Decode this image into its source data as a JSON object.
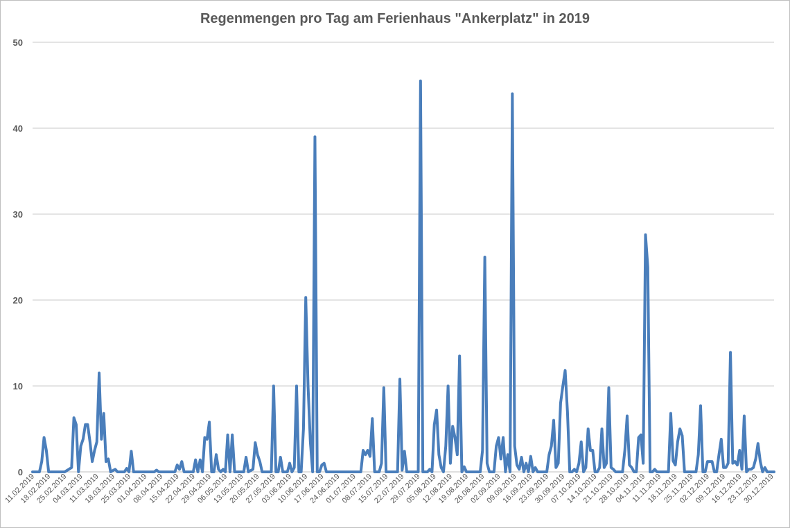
{
  "chart_data": {
    "type": "line",
    "title": "Regenmengen pro Tag am Ferienhaus \"Ankerplatz\" in 2019",
    "xlabel": "",
    "ylabel": "",
    "ylim": [
      0,
      50
    ],
    "yticks": [
      0,
      10,
      20,
      30,
      40,
      50
    ],
    "grid": true,
    "line_color": "#4a7ebb",
    "x_tick_labels": [
      "11.02.2019",
      "18.02.2019",
      "25.02.2019",
      "04.03.2019",
      "11.03.2019",
      "18.03.2019",
      "25.03.2019",
      "01.04.2019",
      "08.04.2019",
      "15.04.2019",
      "22.04.2019",
      "29.04.2019",
      "06.05.2019",
      "13.05.2019",
      "20.05.2019",
      "27.05.2019",
      "03.06.2019",
      "10.06.2019",
      "17.06.2019",
      "24.06.2019",
      "01.07.2019",
      "08.07.2019",
      "15.07.2019",
      "22.07.2019",
      "29.07.2019",
      "05.08.2019",
      "12.08.2019",
      "19.08.2019",
      "26.08.2019",
      "02.09.2019",
      "09.09.2019",
      "16.09.2019",
      "23.09.2019",
      "30.09.2019",
      "07.10.2019",
      "14.10.2019",
      "21.10.2019",
      "28.10.2019",
      "04.11.2019",
      "11.11.2019",
      "18.11.2019",
      "25.11.2019",
      "02.12.2019",
      "09.12.2019",
      "16.12.2019",
      "23.12.2019",
      "30.12.2019"
    ],
    "x_start": "2019-02-11",
    "x_end": "2019-12-31",
    "series": [
      {
        "points": [
          [
            "2019-02-11",
            0
          ],
          [
            "2019-02-14",
            0
          ],
          [
            "2019-02-15",
            1.2
          ],
          [
            "2019-02-16",
            4
          ],
          [
            "2019-02-17",
            2.5
          ],
          [
            "2019-02-18",
            0
          ],
          [
            "2019-02-25",
            0
          ],
          [
            "2019-02-28",
            0.5
          ],
          [
            "2019-03-01",
            6.3
          ],
          [
            "2019-03-02",
            5.5
          ],
          [
            "2019-03-03",
            0
          ],
          [
            "2019-03-04",
            3
          ],
          [
            "2019-03-05",
            3.8
          ],
          [
            "2019-03-06",
            5.5
          ],
          [
            "2019-03-07",
            5.5
          ],
          [
            "2019-03-08",
            3.5
          ],
          [
            "2019-03-09",
            1.2
          ],
          [
            "2019-03-10",
            2.5
          ],
          [
            "2019-03-11",
            3.5
          ],
          [
            "2019-03-12",
            11.5
          ],
          [
            "2019-03-13",
            3.8
          ],
          [
            "2019-03-14",
            6.8
          ],
          [
            "2019-03-15",
            1.2
          ],
          [
            "2019-03-16",
            1.5
          ],
          [
            "2019-03-17",
            0
          ],
          [
            "2019-03-19",
            0.3
          ],
          [
            "2019-03-20",
            0
          ],
          [
            "2019-03-23",
            0
          ],
          [
            "2019-03-24",
            0.4
          ],
          [
            "2019-03-25",
            0
          ],
          [
            "2019-03-26",
            2.4
          ],
          [
            "2019-03-27",
            0
          ],
          [
            "2019-04-05",
            0
          ],
          [
            "2019-04-06",
            0.2
          ],
          [
            "2019-04-07",
            0
          ],
          [
            "2019-04-14",
            0
          ],
          [
            "2019-04-15",
            0.8
          ],
          [
            "2019-04-16",
            0.3
          ],
          [
            "2019-04-17",
            1.2
          ],
          [
            "2019-04-18",
            0
          ],
          [
            "2019-04-22",
            0
          ],
          [
            "2019-04-23",
            1.4
          ],
          [
            "2019-04-24",
            0
          ],
          [
            "2019-04-25",
            1.4
          ],
          [
            "2019-04-26",
            0
          ],
          [
            "2019-04-27",
            4
          ],
          [
            "2019-04-28",
            3.8
          ],
          [
            "2019-04-29",
            5.8
          ],
          [
            "2019-04-30",
            0
          ],
          [
            "2019-05-01",
            0
          ],
          [
            "2019-05-02",
            2
          ],
          [
            "2019-05-03",
            0.3
          ],
          [
            "2019-05-04",
            0
          ],
          [
            "2019-05-05",
            0.3
          ],
          [
            "2019-05-06",
            0
          ],
          [
            "2019-05-07",
            4.3
          ],
          [
            "2019-05-08",
            0
          ],
          [
            "2019-05-09",
            4.3
          ],
          [
            "2019-05-10",
            0
          ],
          [
            "2019-05-14",
            0
          ],
          [
            "2019-05-15",
            1.7
          ],
          [
            "2019-05-16",
            0
          ],
          [
            "2019-05-18",
            0.3
          ],
          [
            "2019-05-19",
            3.4
          ],
          [
            "2019-05-20",
            2
          ],
          [
            "2019-05-21",
            1.2
          ],
          [
            "2019-05-22",
            0
          ],
          [
            "2019-05-26",
            0
          ],
          [
            "2019-05-27",
            10
          ],
          [
            "2019-05-28",
            0
          ],
          [
            "2019-05-29",
            0
          ],
          [
            "2019-05-30",
            1.7
          ],
          [
            "2019-05-31",
            0
          ],
          [
            "2019-06-02",
            0
          ],
          [
            "2019-06-03",
            1
          ],
          [
            "2019-06-04",
            0
          ],
          [
            "2019-06-05",
            0.5
          ],
          [
            "2019-06-06",
            10
          ],
          [
            "2019-06-07",
            0
          ],
          [
            "2019-06-08",
            0
          ],
          [
            "2019-06-09",
            5
          ],
          [
            "2019-06-10",
            20.3
          ],
          [
            "2019-06-11",
            10
          ],
          [
            "2019-06-12",
            3.5
          ],
          [
            "2019-06-13",
            0
          ],
          [
            "2019-06-14",
            39
          ],
          [
            "2019-06-15",
            0
          ],
          [
            "2019-06-16",
            0
          ],
          [
            "2019-06-17",
            0.8
          ],
          [
            "2019-06-18",
            1
          ],
          [
            "2019-06-19",
            0
          ],
          [
            "2019-07-04",
            0
          ],
          [
            "2019-07-05",
            2.5
          ],
          [
            "2019-07-06",
            2
          ],
          [
            "2019-07-07",
            2.5
          ],
          [
            "2019-07-08",
            1.8
          ],
          [
            "2019-07-09",
            6.2
          ],
          [
            "2019-07-10",
            0
          ],
          [
            "2019-07-12",
            0
          ],
          [
            "2019-07-13",
            1
          ],
          [
            "2019-07-14",
            9.8
          ],
          [
            "2019-07-15",
            0
          ],
          [
            "2019-07-20",
            0
          ],
          [
            "2019-07-21",
            10.8
          ],
          [
            "2019-07-22",
            0.2
          ],
          [
            "2019-07-23",
            2.4
          ],
          [
            "2019-07-24",
            0
          ],
          [
            "2019-07-29",
            0
          ],
          [
            "2019-07-30",
            45.5
          ],
          [
            "2019-07-31",
            0
          ],
          [
            "2019-08-02",
            0
          ],
          [
            "2019-08-03",
            0.3
          ],
          [
            "2019-08-04",
            0
          ],
          [
            "2019-08-05",
            5.5
          ],
          [
            "2019-08-06",
            7.2
          ],
          [
            "2019-08-07",
            2
          ],
          [
            "2019-08-08",
            0.5
          ],
          [
            "2019-08-09",
            0
          ],
          [
            "2019-08-10",
            3
          ],
          [
            "2019-08-11",
            10
          ],
          [
            "2019-08-12",
            1
          ],
          [
            "2019-08-13",
            5.3
          ],
          [
            "2019-08-14",
            4
          ],
          [
            "2019-08-15",
            2
          ],
          [
            "2019-08-16",
            13.5
          ],
          [
            "2019-08-17",
            0
          ],
          [
            "2019-08-18",
            0.6
          ],
          [
            "2019-08-19",
            0
          ],
          [
            "2019-08-25",
            0
          ],
          [
            "2019-08-26",
            2.5
          ],
          [
            "2019-08-27",
            25
          ],
          [
            "2019-08-28",
            1
          ],
          [
            "2019-08-29",
            0
          ],
          [
            "2019-08-31",
            0
          ],
          [
            "2019-09-01",
            3
          ],
          [
            "2019-09-02",
            4
          ],
          [
            "2019-09-03",
            1.5
          ],
          [
            "2019-09-04",
            4
          ],
          [
            "2019-09-05",
            0
          ],
          [
            "2019-09-06",
            2
          ],
          [
            "2019-09-07",
            0
          ],
          [
            "2019-09-08",
            44
          ],
          [
            "2019-09-09",
            3
          ],
          [
            "2019-09-10",
            0.8
          ],
          [
            "2019-09-11",
            0.3
          ],
          [
            "2019-09-12",
            1.7
          ],
          [
            "2019-09-13",
            0
          ],
          [
            "2019-09-14",
            1
          ],
          [
            "2019-09-15",
            0
          ],
          [
            "2019-09-16",
            1.8
          ],
          [
            "2019-09-17",
            0
          ],
          [
            "2019-09-18",
            0.5
          ],
          [
            "2019-09-19",
            0
          ],
          [
            "2019-09-23",
            0
          ],
          [
            "2019-09-24",
            2
          ],
          [
            "2019-09-25",
            3
          ],
          [
            "2019-09-26",
            6
          ],
          [
            "2019-09-27",
            0.5
          ],
          [
            "2019-09-28",
            1
          ],
          [
            "2019-09-29",
            8
          ],
          [
            "2019-09-30",
            10
          ],
          [
            "2019-10-01",
            11.8
          ],
          [
            "2019-10-02",
            7
          ],
          [
            "2019-10-03",
            0
          ],
          [
            "2019-10-04",
            0
          ],
          [
            "2019-10-05",
            0.3
          ],
          [
            "2019-10-06",
            0
          ],
          [
            "2019-10-07",
            1
          ],
          [
            "2019-10-08",
            3.5
          ],
          [
            "2019-10-09",
            0
          ],
          [
            "2019-10-10",
            0.5
          ],
          [
            "2019-10-11",
            5
          ],
          [
            "2019-10-12",
            2.5
          ],
          [
            "2019-10-13",
            2.5
          ],
          [
            "2019-10-14",
            0
          ],
          [
            "2019-10-15",
            0
          ],
          [
            "2019-10-16",
            0.5
          ],
          [
            "2019-10-17",
            5
          ],
          [
            "2019-10-18",
            0.5
          ],
          [
            "2019-10-19",
            1
          ],
          [
            "2019-10-20",
            9.8
          ],
          [
            "2019-10-21",
            0.5
          ],
          [
            "2019-10-22",
            0.3
          ],
          [
            "2019-10-23",
            0
          ],
          [
            "2019-10-26",
            0
          ],
          [
            "2019-10-27",
            2.5
          ],
          [
            "2019-10-28",
            6.5
          ],
          [
            "2019-10-29",
            0.8
          ],
          [
            "2019-10-30",
            0.5
          ],
          [
            "2019-10-31",
            0
          ],
          [
            "2019-11-01",
            0
          ],
          [
            "2019-11-02",
            4
          ],
          [
            "2019-11-03",
            4.3
          ],
          [
            "2019-11-04",
            1
          ],
          [
            "2019-11-05",
            27.6
          ],
          [
            "2019-11-06",
            23.8
          ],
          [
            "2019-11-07",
            0
          ],
          [
            "2019-11-08",
            0
          ],
          [
            "2019-11-09",
            0.3
          ],
          [
            "2019-11-10",
            0
          ],
          [
            "2019-11-15",
            0
          ],
          [
            "2019-11-16",
            6.8
          ],
          [
            "2019-11-17",
            1.3
          ],
          [
            "2019-11-18",
            0.8
          ],
          [
            "2019-11-19",
            3.5
          ],
          [
            "2019-11-20",
            5
          ],
          [
            "2019-11-21",
            4.2
          ],
          [
            "2019-11-22",
            0
          ],
          [
            "2019-11-27",
            0
          ],
          [
            "2019-11-28",
            2
          ],
          [
            "2019-11-29",
            7.7
          ],
          [
            "2019-11-30",
            0
          ],
          [
            "2019-12-01",
            0
          ],
          [
            "2019-12-02",
            1.2
          ],
          [
            "2019-12-03",
            1.2
          ],
          [
            "2019-12-04",
            1.2
          ],
          [
            "2019-12-05",
            0
          ],
          [
            "2019-12-06",
            0
          ],
          [
            "2019-12-07",
            2
          ],
          [
            "2019-12-08",
            3.8
          ],
          [
            "2019-12-09",
            0.5
          ],
          [
            "2019-12-10",
            0.5
          ],
          [
            "2019-12-11",
            1
          ],
          [
            "2019-12-12",
            13.9
          ],
          [
            "2019-12-13",
            1
          ],
          [
            "2019-12-14",
            1.2
          ],
          [
            "2019-12-15",
            0.8
          ],
          [
            "2019-12-16",
            2.5
          ],
          [
            "2019-12-17",
            0.3
          ],
          [
            "2019-12-18",
            6.5
          ],
          [
            "2019-12-19",
            0
          ],
          [
            "2019-12-20",
            0.3
          ],
          [
            "2019-12-21",
            0.3
          ],
          [
            "2019-12-22",
            0.5
          ],
          [
            "2019-12-23",
            1.5
          ],
          [
            "2019-12-24",
            3.3
          ],
          [
            "2019-12-25",
            1.2
          ],
          [
            "2019-12-26",
            0
          ],
          [
            "2019-12-27",
            0.5
          ],
          [
            "2019-12-28",
            0
          ],
          [
            "2019-12-31",
            0
          ]
        ]
      }
    ]
  }
}
